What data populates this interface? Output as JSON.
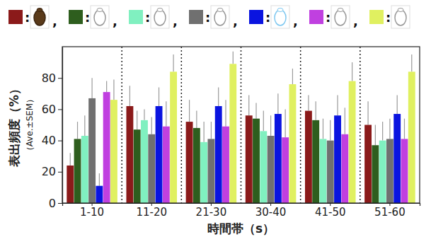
{
  "chart_data": {
    "type": "bar",
    "ylabel": [
      "表出頻度（%）",
      "（Ave.±SEM）"
    ],
    "xlabel": "時間帯（s）",
    "legend_separator": ",",
    "categories": [
      "1-10",
      "11-20",
      "21-30",
      "30-40",
      "41-50",
      "51-60"
    ],
    "ylim": [
      0,
      100
    ],
    "yticks": [
      0,
      20,
      40,
      60,
      80
    ],
    "grid": false,
    "legend": "top",
    "series": [
      {
        "name": ":",
        "color": "#8b1a1a",
        "values": [
          24,
          62,
          52,
          56,
          59,
          50
        ],
        "errors": [
          8,
          13,
          14,
          13,
          10,
          15
        ]
      },
      {
        "name": ":",
        "color": "#2e5e1e",
        "values": [
          41,
          47,
          48,
          54,
          53,
          37
        ],
        "errors": [
          11,
          12,
          11,
          10,
          12,
          13
        ]
      },
      {
        "name": ":",
        "color": "#80f0c0",
        "values": [
          43,
          53,
          39,
          46,
          41,
          40
        ],
        "errors": [
          13,
          7,
          13,
          13,
          13,
          12
        ]
      },
      {
        "name": ":",
        "color": "#707070",
        "values": [
          67,
          44,
          41,
          43,
          40,
          41
        ],
        "errors": [
          13,
          11,
          11,
          13,
          13,
          13
        ]
      },
      {
        "name": ":",
        "color": "#0a14e0",
        "values": [
          11,
          62,
          62,
          57,
          56,
          57
        ],
        "errors": [
          8,
          12,
          12,
          13,
          13,
          12
        ]
      },
      {
        "name": ":",
        "color": "#c040e0",
        "values": [
          71,
          49,
          49,
          42,
          44,
          41
        ],
        "errors": [
          7,
          16,
          17,
          18,
          17,
          13
        ]
      },
      {
        "name": ":",
        "color": "#e0f060",
        "values": [
          66,
          84,
          89,
          76,
          78,
          84
        ],
        "errors": [
          13,
          11,
          8,
          10,
          12,
          11
        ]
      }
    ]
  }
}
